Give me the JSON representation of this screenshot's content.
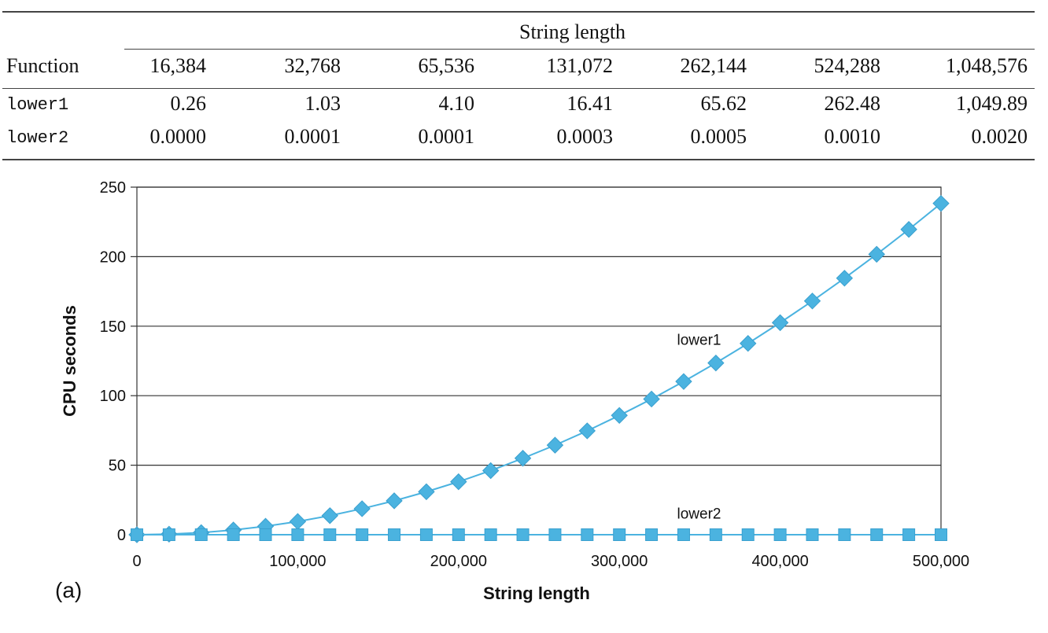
{
  "table": {
    "group_header": "String length",
    "row_header": "Function",
    "columns": [
      "16,384",
      "32,768",
      "65,536",
      "131,072",
      "262,144",
      "524,288",
      "1,048,576"
    ],
    "rows": [
      {
        "function": "lower1",
        "values": [
          "0.26",
          "1.03",
          "4.10",
          "16.41",
          "65.62",
          "262.48",
          "1,049.89"
        ]
      },
      {
        "function": "lower2",
        "values": [
          "0.0000",
          "0.0001",
          "0.0001",
          "0.0003",
          "0.0005",
          "0.0010",
          "0.0020"
        ]
      }
    ]
  },
  "chart_data": {
    "type": "line",
    "xlabel": "String length",
    "ylabel": "CPU seconds",
    "panel_label": "(a)",
    "xlim": [
      0,
      500000
    ],
    "ylim": [
      0,
      250
    ],
    "xticks": [
      "0",
      "100,000",
      "200,000",
      "300,000",
      "400,000",
      "500,000"
    ],
    "yticks": [
      "0",
      "50",
      "100",
      "150",
      "200",
      "250"
    ],
    "grid": "horizontal",
    "x": [
      0,
      20000,
      40000,
      60000,
      80000,
      100000,
      120000,
      140000,
      160000,
      180000,
      200000,
      220000,
      240000,
      260000,
      280000,
      300000,
      320000,
      340000,
      360000,
      380000,
      400000,
      420000,
      440000,
      460000,
      480000,
      500000
    ],
    "series": [
      {
        "name": "lower1",
        "marker": "diamond",
        "color": "#4bb3e0",
        "values": [
          0,
          0.4,
          1.5,
          3.4,
          6.1,
          9.5,
          13.7,
          18.7,
          24.4,
          30.9,
          38.1,
          46.1,
          55.0,
          64.4,
          74.7,
          85.8,
          97.6,
          110.2,
          123.5,
          137.6,
          152.5,
          168.1,
          184.5,
          201.7,
          219.6,
          238.3
        ]
      },
      {
        "name": "lower2",
        "marker": "square",
        "color": "#4bb3e0",
        "values": [
          0,
          0,
          0,
          0,
          0,
          0,
          0,
          0,
          0,
          0,
          0,
          0,
          0,
          0,
          0,
          0,
          0,
          0,
          0,
          0,
          0,
          0,
          0,
          0,
          0,
          0
        ]
      }
    ],
    "annotations": [
      {
        "text": "lower1",
        "x": 330000,
        "y": 140
      },
      {
        "text": "lower2",
        "x": 330000,
        "y": 15
      }
    ]
  }
}
